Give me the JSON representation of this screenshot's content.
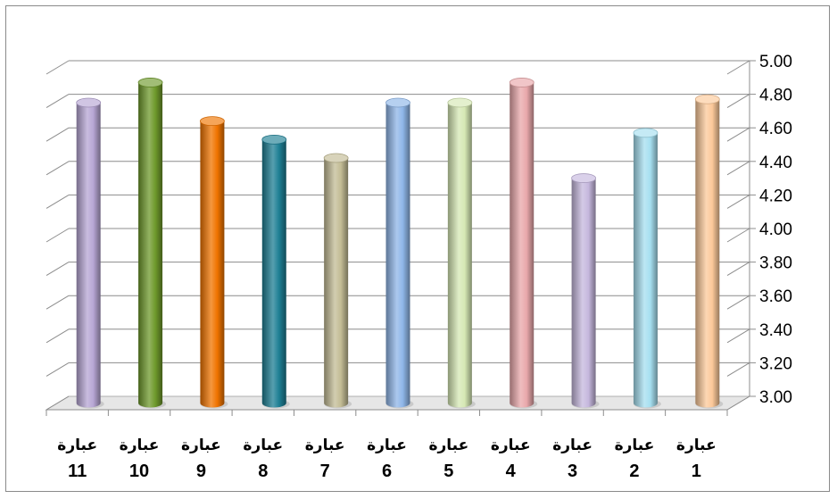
{
  "chart_data": {
    "type": "bar",
    "style": "3d-cylinder",
    "categories": [
      {
        "name": "عبارة",
        "num": "1"
      },
      {
        "name": "عبارة",
        "num": "2"
      },
      {
        "name": "عبارة",
        "num": "3"
      },
      {
        "name": "عبارة",
        "num": "4"
      },
      {
        "name": "عبارة",
        "num": "5"
      },
      {
        "name": "عبارة",
        "num": "6"
      },
      {
        "name": "عبارة",
        "num": "7"
      },
      {
        "name": "عبارة",
        "num": "8"
      },
      {
        "name": "عبارة",
        "num": "9"
      },
      {
        "name": "عبارة",
        "num": "10"
      },
      {
        "name": "عبارة",
        "num": "11"
      }
    ],
    "values": [
      4.81,
      4.61,
      4.34,
      4.91,
      4.79,
      4.79,
      4.46,
      4.57,
      4.68,
      4.91,
      4.79
    ],
    "colors": [
      "#fcc99a",
      "#a6dff0",
      "#c6b8de",
      "#e9a8ab",
      "#d6e8b4",
      "#8fb6e8",
      "#c3bc95",
      "#1e7f94",
      "#f07400",
      "#6f9a2c",
      "#b7a6d4"
    ],
    "ylim": [
      3.0,
      5.0
    ],
    "yticks": [
      "3.00",
      "3.20",
      "3.40",
      "3.60",
      "3.80",
      "4.00",
      "4.20",
      "4.40",
      "4.60",
      "4.80",
      "5.00"
    ],
    "y_axis_side": "right",
    "category_order": "right-to-left",
    "grid": true,
    "legend": "none",
    "title": "",
    "xlabel": "",
    "ylabel": ""
  }
}
